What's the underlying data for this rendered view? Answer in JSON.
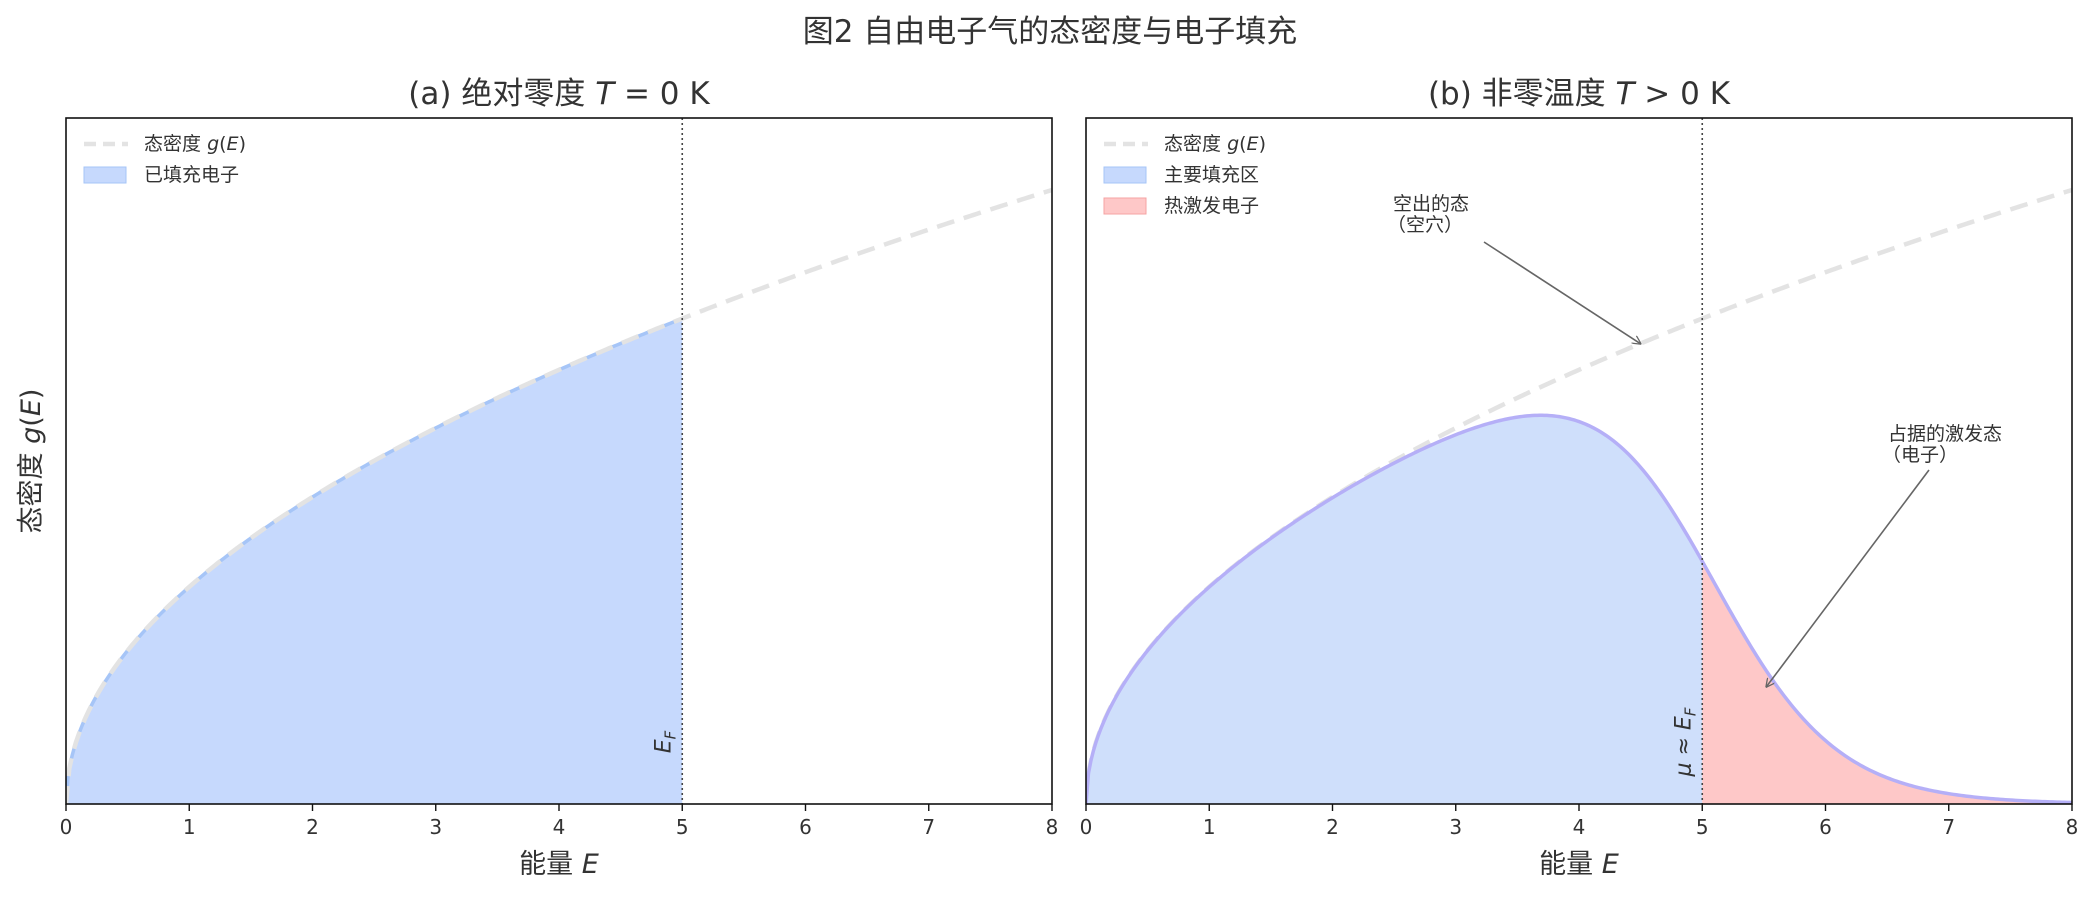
{
  "figure_title": "图2 自由电子气的态密度与电子填充",
  "colors": {
    "dos_line": "#e3e3e3",
    "filled_a": "#c6d9fd",
    "filled_a_edge": "#a6c5f7",
    "filled_b": "#cfdffb",
    "curve_b": "#b5aff7",
    "thermal": "#fec8c8",
    "marker": "#444444",
    "annotation": "#666666",
    "text": "#333333",
    "frame": "#111111"
  },
  "chart_data": [
    {
      "type": "area",
      "title": "(a) 绝对零度 T = 0 K",
      "title_parts": {
        "prefix": "(a)  绝对零度  ",
        "italic": "T",
        "suffix": " = 0 K"
      },
      "xlabel": "能量 E",
      "xlabel_parts": {
        "prefix": "能量  ",
        "italic": "E"
      },
      "ylabel": "态密度 g(E)",
      "ylabel_parts": {
        "prefix": "态密度  ",
        "italic": "g",
        "suffix": "(",
        "italic2": "E",
        "suffix2": ")"
      },
      "xlim": [
        0,
        8
      ],
      "ylim": [
        0,
        3.16
      ],
      "xticks": [
        0,
        1,
        2,
        3,
        4,
        5,
        6,
        7,
        8
      ],
      "grid": false,
      "legend_position": "upper-left",
      "legend": [
        {
          "label": "态密度",
          "math": "g(E)",
          "style": "dashed"
        },
        {
          "label": "已填充电子",
          "style": "patch-blue"
        }
      ],
      "series": [
        {
          "name": "态密度 g(E)",
          "function": "sqrt(E)",
          "x_range": [
            0,
            8
          ],
          "style": "dashed"
        },
        {
          "name": "已填充电子",
          "function": "sqrt(E)",
          "x_range": [
            0,
            5
          ],
          "style": "filled"
        }
      ],
      "fermi_energy": 5,
      "marker_label": "E_F",
      "marker_label_parts": {
        "main": "E",
        "sub": "F"
      }
    },
    {
      "type": "area",
      "title": "(b) 非零温度 T > 0 K",
      "title_parts": {
        "prefix": "(b)  非零温度  ",
        "italic": "T",
        "suffix": " > 0 K"
      },
      "xlabel": "能量 E",
      "xlabel_parts": {
        "prefix": "能量  ",
        "italic": "E"
      },
      "xlim": [
        0,
        8
      ],
      "ylim": [
        0,
        3.16
      ],
      "xticks": [
        0,
        1,
        2,
        3,
        4,
        5,
        6,
        7,
        8
      ],
      "grid": false,
      "legend_position": "upper-left",
      "legend": [
        {
          "label": "态密度",
          "math": "g(E)",
          "style": "dashed"
        },
        {
          "label": "主要填充区",
          "style": "patch-blue"
        },
        {
          "label": "热激发电子",
          "style": "patch-red"
        }
      ],
      "series": [
        {
          "name": "态密度 g(E)",
          "function": "sqrt(E)",
          "x_range": [
            0,
            8
          ],
          "style": "dashed"
        },
        {
          "name": "主要填充区",
          "function": "sqrt(E) / (exp((E - mu) / kT) + 1)",
          "x_range": [
            0,
            5
          ],
          "style": "filled"
        },
        {
          "name": "热激发电子",
          "function": "sqrt(E) / (exp((E - mu) / kT) + 1)",
          "x_range": [
            5,
            8
          ],
          "style": "filled"
        }
      ],
      "chemical_potential": 5,
      "kT": 0.5,
      "marker_label": "μ ≈ E_F",
      "marker_label_parts": {
        "prefix": "μ ≈ ",
        "main": "E",
        "sub": "F"
      },
      "annotations": [
        {
          "text_lines": [
            "空出的态",
            "（空穴）"
          ],
          "point": [
            4.5,
            2.12
          ]
        },
        {
          "text_lines": [
            "占据的激发态",
            "（电子）"
          ],
          "point": [
            5.52,
            0.54
          ]
        }
      ]
    }
  ]
}
